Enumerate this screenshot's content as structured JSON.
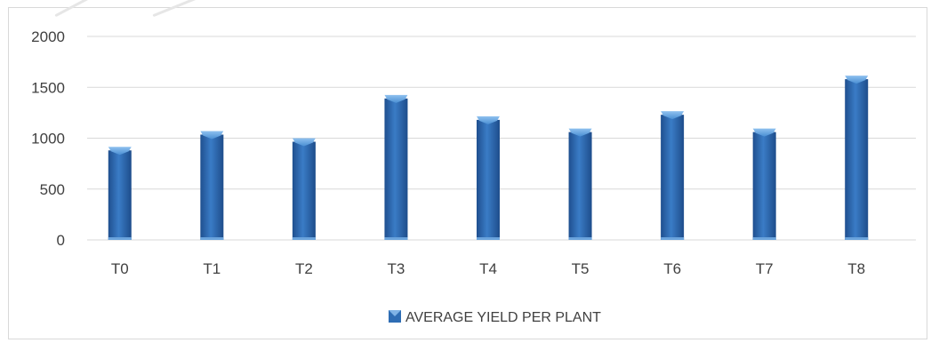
{
  "chart_data": {
    "type": "bar",
    "categories": [
      "T0",
      "T1",
      "T2",
      "T3",
      "T4",
      "T5",
      "T6",
      "T7",
      "T8"
    ],
    "series": [
      {
        "name": "AVERAGE YIELD PER PLANT",
        "values": [
          915,
          1070,
          1000,
          1425,
          1215,
          1095,
          1265,
          1095,
          1615
        ]
      }
    ],
    "yticks": [
      "0",
      "500",
      "1000",
      "1500",
      "2000"
    ],
    "ylim": [
      0,
      2000
    ],
    "grid": true,
    "legend_position": "bottom",
    "colors": {
      "bar": "#2e6db4",
      "bar_dark": "#1e4e8a",
      "bar_light": "#5b9bd5",
      "grid": "#d9d9d9",
      "axis_text": "#404040"
    }
  }
}
